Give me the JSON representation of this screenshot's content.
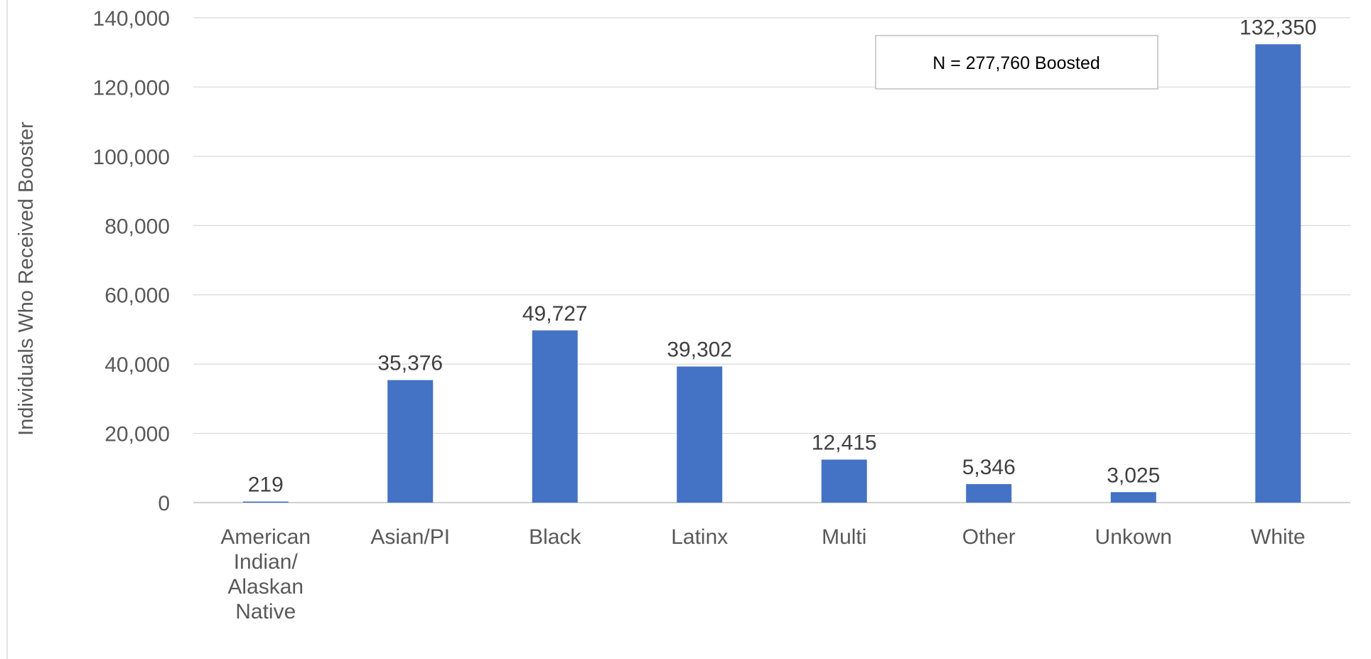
{
  "chart_data": {
    "type": "bar",
    "categories": [
      [
        "American",
        "Indian/",
        "Alaskan",
        "Native"
      ],
      [
        "Asian/PI"
      ],
      [
        "Black"
      ],
      [
        "Latinx"
      ],
      [
        "Multi"
      ],
      [
        "Other"
      ],
      [
        "Unkown"
      ],
      [
        "White"
      ]
    ],
    "values": [
      219,
      35376,
      49727,
      39302,
      12415,
      5346,
      3025,
      132350
    ],
    "value_labels": [
      "219",
      "35,376",
      "49,727",
      "39,302",
      "12,415",
      "5,346",
      "3,025",
      "132,350"
    ],
    "ylabel": "Individuals Who Received Booster",
    "ylim": [
      0,
      140000
    ],
    "yticks": [
      0,
      20000,
      40000,
      60000,
      80000,
      100000,
      120000,
      140000
    ],
    "ytick_labels": [
      "0",
      "20,000",
      "40,000",
      "60,000",
      "80,000",
      "100,000",
      "120,000",
      "140,000"
    ],
    "annotation": "N = 277,760 Boosted",
    "grid": true,
    "colors": {
      "bar": "#4472C4",
      "grid": "#D9D9D9",
      "axis": "#BFBFBF",
      "text": "#595959"
    }
  }
}
